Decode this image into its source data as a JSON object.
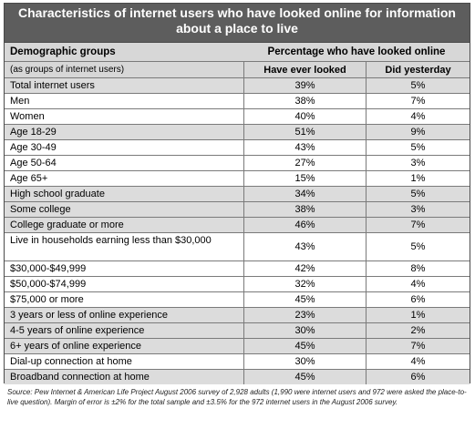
{
  "title_line1": "Characteristics of internet users who have looked online for information",
  "title_line2": "about a place to live",
  "header": {
    "groups": "Demographic groups",
    "pct": "Percentage who have looked online",
    "groups_sub": "(as groups of internet users)",
    "ever": "Have ever looked",
    "yesterday": "Did yesterday"
  },
  "rows": [
    {
      "label": "Total internet users",
      "ever": "39%",
      "yesterday": "5%"
    },
    {
      "label": "Men",
      "ever": "38%",
      "yesterday": "7%"
    },
    {
      "label": "Women",
      "ever": "40%",
      "yesterday": "4%"
    },
    {
      "label": "Age 18-29",
      "ever": "51%",
      "yesterday": "9%"
    },
    {
      "label": "Age 30-49",
      "ever": "43%",
      "yesterday": "5%"
    },
    {
      "label": "Age 50-64",
      "ever": "27%",
      "yesterday": "3%"
    },
    {
      "label": "Age 65+",
      "ever": "15%",
      "yesterday": "1%"
    },
    {
      "label": "High school graduate",
      "ever": "34%",
      "yesterday": "5%"
    },
    {
      "label": "Some college",
      "ever": "38%",
      "yesterday": "3%"
    },
    {
      "label": "College graduate or more",
      "ever": "46%",
      "yesterday": "7%"
    },
    {
      "label": "Live in households earning less than $30,000",
      "ever": "43%",
      "yesterday": "5%"
    },
    {
      "label": "$30,000-$49,999",
      "ever": "42%",
      "yesterday": "8%"
    },
    {
      "label": "$50,000-$74,999",
      "ever": "32%",
      "yesterday": "4%"
    },
    {
      "label": "$75,000 or more",
      "ever": "45%",
      "yesterday": "6%"
    },
    {
      "label": "3 years or less of online experience",
      "ever": "23%",
      "yesterday": "1%"
    },
    {
      "label": "4-5 years of online experience",
      "ever": "30%",
      "yesterday": "2%"
    },
    {
      "label": "6+ years of online experience",
      "ever": "45%",
      "yesterday": "7%"
    },
    {
      "label": "Dial-up connection at home",
      "ever": "30%",
      "yesterday": "4%"
    },
    {
      "label": "Broadband connection at home",
      "ever": "45%",
      "yesterday": "6%"
    }
  ],
  "source": "Source: Pew Internet & American Life Project August 2006 survey of 2,928 adults (1,990 were internet users and 972 were asked the place-to-live question). Margin of error is ±2% for the total sample and ±3.5% for the 972 internet users in the August 2006 survey."
}
